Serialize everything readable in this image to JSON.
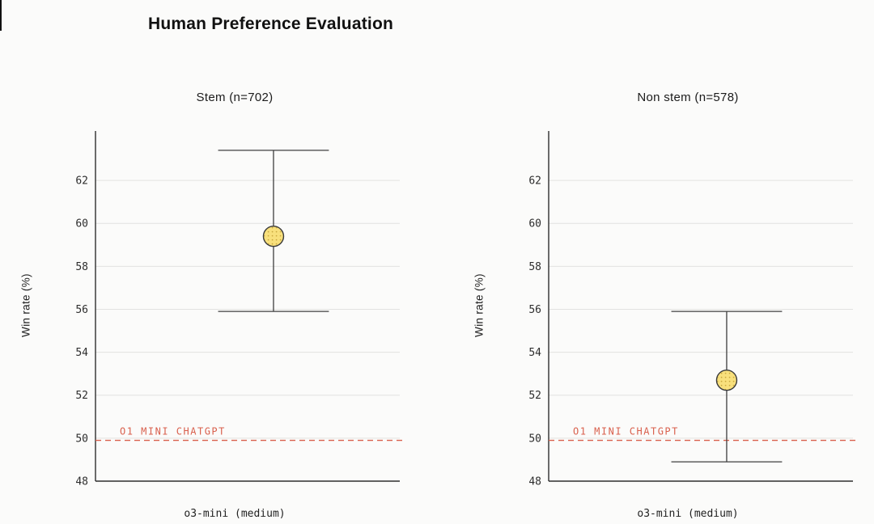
{
  "title": "Human Preference Evaluation",
  "colors": {
    "background": "#fbfbfa",
    "accent_red": "#d9604d",
    "point_fill": "#f8e07c",
    "point_dot": "#c9a83e",
    "point_stroke": "#3a3a3a",
    "gridline": "#e2e2e0",
    "axis": "#2e2e2e",
    "errorbar": "#3f3f3f",
    "tick_text": "#2d2d2d"
  },
  "chart_data": [
    {
      "type": "scatter",
      "subtitle": "Stem (n=702)",
      "xlabel": "o3-mini (medium)",
      "ylabel": "Win rate (%)",
      "ylim": [
        48,
        64.3
      ],
      "yticks": [
        48,
        50,
        52,
        54,
        56,
        58,
        60,
        62
      ],
      "grid": true,
      "series": [
        {
          "name": "o3-mini (medium)",
          "value": 59.4,
          "err_low": 55.9,
          "err_high": 63.4
        }
      ],
      "baseline": {
        "label": "O1 MINI CHATGPT",
        "value": 49.9
      }
    },
    {
      "type": "scatter",
      "subtitle": "Non stem (n=578)",
      "xlabel": "o3-mini (medium)",
      "ylabel": "Win rate (%)",
      "ylim": [
        48,
        64.3
      ],
      "yticks": [
        48,
        50,
        52,
        54,
        56,
        58,
        60,
        62
      ],
      "grid": true,
      "series": [
        {
          "name": "o3-mini (medium)",
          "value": 52.7,
          "err_low": 48.9,
          "err_high": 55.9
        }
      ],
      "baseline": {
        "label": "O1 MINI CHATGPT",
        "value": 49.9
      }
    }
  ]
}
